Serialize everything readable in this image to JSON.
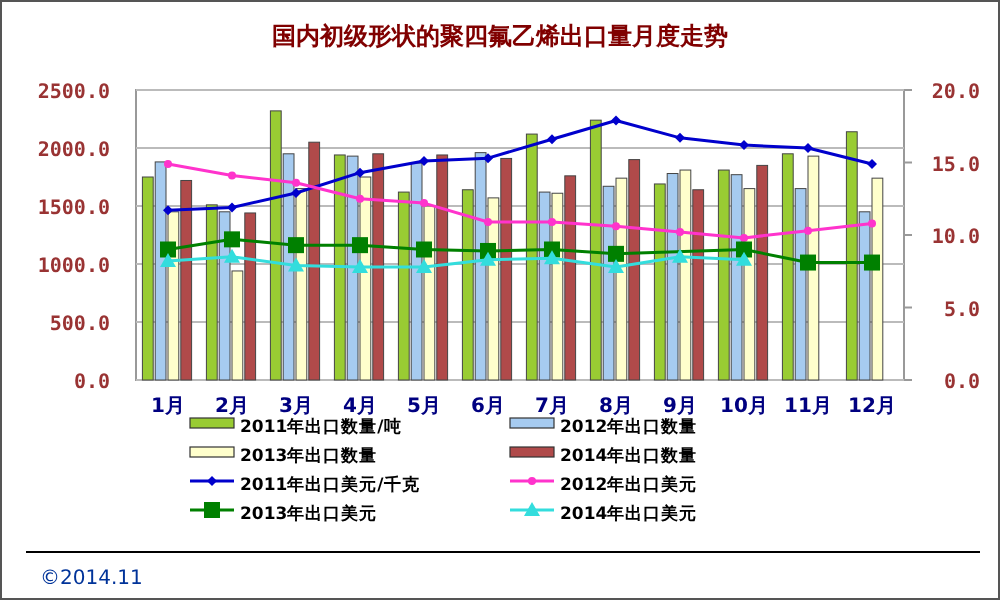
{
  "chart_data": {
    "type": "bar",
    "title": "国内初级形状的聚四氟乙烯出口量月度走势",
    "categories": [
      "1月",
      "2月",
      "3月",
      "4月",
      "5月",
      "6月",
      "7月",
      "8月",
      "9月",
      "10月",
      "11月",
      "12月"
    ],
    "series": [
      {
        "name": "2011年出口数量/吨",
        "color": "#99cc33",
        "values": [
          1750,
          1510,
          2320,
          1940,
          1620,
          1640,
          2120,
          2240,
          1690,
          1810,
          1950,
          2140
        ]
      },
      {
        "name": "2012年出口数量",
        "color": "#a6cbf0",
        "values": [
          1880,
          1450,
          1950,
          1930,
          1870,
          1960,
          1620,
          1670,
          1780,
          1770,
          1650,
          1450
        ]
      },
      {
        "name": "2013年出口数量",
        "color": "#ffffcc",
        "values": [
          1450,
          940,
          1650,
          1750,
          1500,
          1570,
          1610,
          1740,
          1810,
          1650,
          1930,
          1740
        ]
      },
      {
        "name": "2014年出口数量",
        "color": "#b04a4a",
        "values": [
          1720,
          1440,
          2050,
          1950,
          1940,
          1910,
          1760,
          1900,
          1640,
          1850,
          null,
          null
        ]
      },
      {
        "name": "2011年出口美元/千克",
        "type": "line",
        "axis": "y2",
        "marker": "diamond",
        "color": "#0000cc",
        "values": [
          11.7,
          11.9,
          12.9,
          14.3,
          15.1,
          15.3,
          16.6,
          17.9,
          16.7,
          16.2,
          16.0,
          14.9
        ]
      },
      {
        "name": "2012年出口美元",
        "type": "line",
        "axis": "y2",
        "marker": "circle",
        "color": "#ff33cc",
        "values": [
          14.9,
          14.1,
          13.6,
          12.5,
          12.2,
          10.9,
          10.9,
          10.6,
          10.2,
          9.8,
          10.3,
          10.8
        ]
      },
      {
        "name": "2013年出口美元",
        "type": "line",
        "axis": "y2",
        "marker": "square",
        "color": "#008000",
        "values": [
          9.0,
          9.7,
          9.3,
          9.3,
          9.0,
          8.9,
          9.0,
          8.7,
          null,
          9.0,
          8.1,
          8.1
        ]
      },
      {
        "name": "2014年出口美元",
        "type": "line",
        "axis": "y2",
        "marker": "triangle",
        "color": "#33dddd",
        "values": [
          8.2,
          8.5,
          7.9,
          7.8,
          7.8,
          8.3,
          8.4,
          7.8,
          8.5,
          8.3,
          null,
          null
        ]
      }
    ],
    "ylim": [
      0,
      2500
    ],
    "yticks": [
      {
        "value": 0,
        "label": "0.0"
      },
      {
        "value": 500,
        "label": "500.0"
      },
      {
        "value": 1000,
        "label": "1000.0"
      },
      {
        "value": 1500,
        "label": "1500.0"
      },
      {
        "value": 2000,
        "label": "2000.0"
      },
      {
        "value": 2500,
        "label": "2500.0"
      }
    ],
    "y2lim": [
      0,
      20
    ],
    "y2ticks": [
      {
        "value": 0,
        "label": "0.0"
      },
      {
        "value": 5,
        "label": "5.0"
      },
      {
        "value": 10,
        "label": "10.0"
      },
      {
        "value": 15,
        "label": "15.0"
      },
      {
        "value": 20,
        "label": "20.0"
      }
    ],
    "grid": "y",
    "legend": "bottom",
    "annotations": [
      "©2014.11"
    ]
  }
}
